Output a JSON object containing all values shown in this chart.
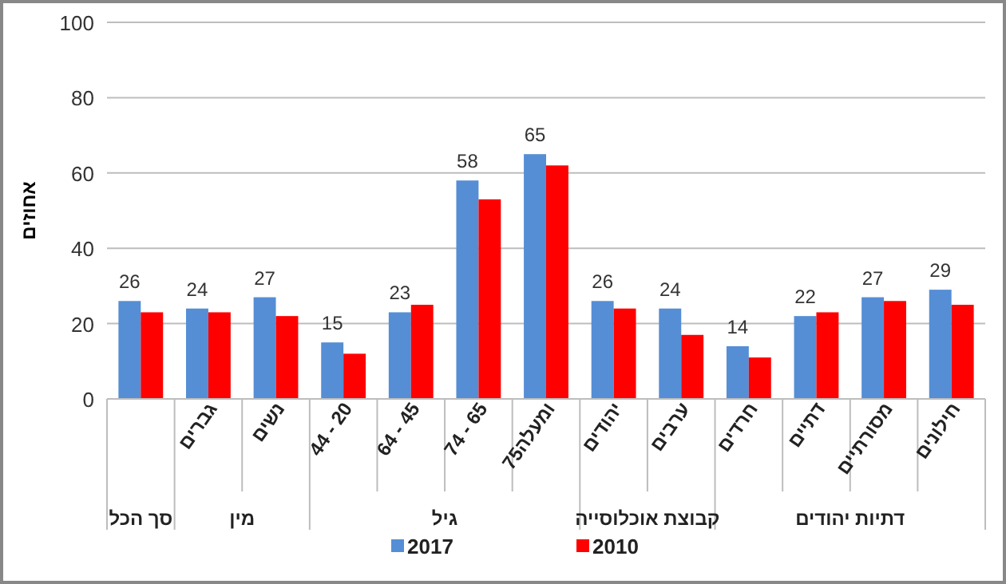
{
  "chart_data": {
    "type": "bar",
    "ylabel": "אחוזים",
    "categories": [
      null,
      "גברים",
      "נשים",
      "44 - 20",
      "64 - 45",
      "74 - 65",
      "75ומעלה",
      "יהודים",
      "ערבים",
      "חרדים",
      "דתיים",
      "מסורתיים",
      "חילונים"
    ],
    "series": [
      {
        "name": "2017",
        "color": "#558ed5",
        "values": [
          26,
          24,
          27,
          15,
          23,
          58,
          65,
          26,
          24,
          14,
          22,
          27,
          29
        ],
        "value_labels": [
          "26",
          "24",
          "27",
          "15",
          "23",
          "58",
          "65",
          "26",
          "24",
          "14",
          "22",
          "27",
          "29"
        ]
      },
      {
        "name": "2010",
        "color": "#ff0000",
        "values": [
          23,
          23,
          22,
          12,
          25,
          53,
          62,
          24,
          17,
          11,
          23,
          26,
          25
        ]
      }
    ],
    "annotations": [
      "סך הכל",
      "מין",
      "גיל",
      "קבוצת אוכלוסייה",
      "דתיות יהודים"
    ],
    "ylim": [
      0,
      100
    ],
    "yticks": [
      0,
      20,
      40,
      60,
      80,
      100
    ],
    "grid": "y",
    "legend": "bottom"
  }
}
